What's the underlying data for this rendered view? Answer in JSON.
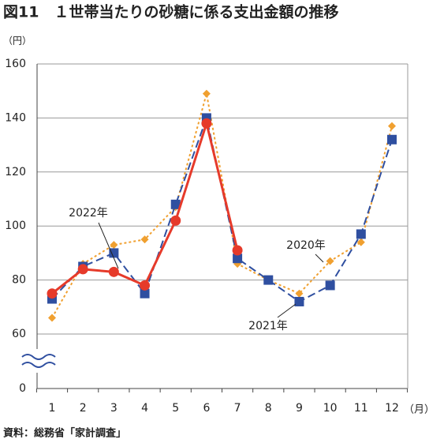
{
  "chart_data": {
    "type": "line",
    "title": "図11　１世帯当たりの砂糖に係る支出金額の推移",
    "y_unit": "（円）",
    "x_unit": "（月）",
    "source": "資料：総務省「家計調査」",
    "categories": [
      "1",
      "2",
      "3",
      "4",
      "5",
      "6",
      "7",
      "8",
      "9",
      "10",
      "11",
      "12"
    ],
    "series": [
      {
        "name": "2020年",
        "color": "#f0a030",
        "marker": "diamond",
        "dash": "3,3",
        "values": [
          66,
          86,
          93,
          95,
          107,
          149,
          86,
          80,
          75,
          87,
          94,
          137
        ]
      },
      {
        "name": "2021年",
        "color": "#2f4fa0",
        "marker": "square",
        "dash": "10,5",
        "values": [
          73,
          85,
          90,
          75,
          108,
          140,
          88,
          80,
          72,
          78,
          97,
          132
        ]
      },
      {
        "name": "2022年",
        "color": "#e63a2a",
        "marker": "circle",
        "dash": "",
        "values": [
          75,
          84,
          83,
          78,
          102,
          138,
          91,
          null,
          null,
          null,
          null,
          null
        ]
      }
    ],
    "ylim": [
      60,
      160
    ],
    "yticks": [
      0,
      60,
      80,
      100,
      120,
      140,
      160
    ],
    "y_break": true,
    "grid": true
  }
}
